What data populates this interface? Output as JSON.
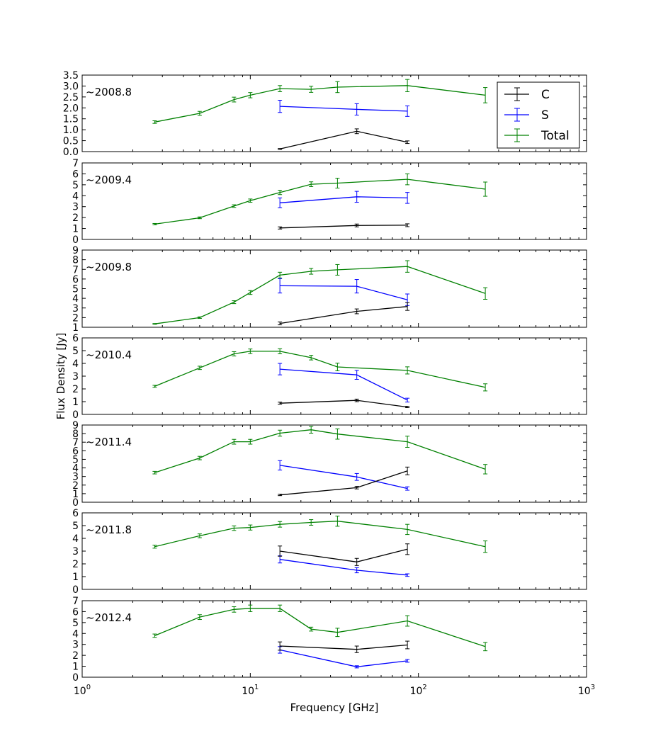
{
  "chart_data": {
    "type": "line",
    "xscale": "log",
    "xlim": [
      1,
      1000
    ],
    "xticks": [
      {
        "base": "10",
        "exp": "0"
      },
      {
        "base": "10",
        "exp": "1"
      },
      {
        "base": "10",
        "exp": "2"
      },
      {
        "base": "10",
        "exp": "3"
      }
    ],
    "xlabel": "Frequency [GHz]",
    "ylabel": "Flux Density [Jy]",
    "legend": {
      "placement": "top-right of first panel",
      "entries": [
        {
          "label": "C",
          "color": "#000000"
        },
        {
          "label": "S",
          "color": "#0000ff"
        },
        {
          "label": "Total",
          "color": "#008000"
        }
      ]
    },
    "series_colors": {
      "C": "#000000",
      "S": "#0000ff",
      "Total": "#008000"
    },
    "panels": [
      {
        "label": "~2008.8",
        "ylim": [
          0,
          3.5
        ],
        "yticks": [
          "0.0",
          "0.5",
          "1.0",
          "1.5",
          "2.0",
          "2.5",
          "3.0",
          "3.5"
        ],
        "series": [
          {
            "name": "Total",
            "points": [
              [
                2.7,
                1.35,
                0.06
              ],
              [
                5,
                1.75,
                0.09
              ],
              [
                8,
                2.38,
                0.11
              ],
              [
                10,
                2.58,
                0.12
              ],
              [
                15,
                2.88,
                0.14
              ],
              [
                23,
                2.85,
                0.14
              ],
              [
                33,
                2.95,
                0.25
              ],
              [
                86,
                3.02,
                0.28
              ],
              [
                250,
                2.58,
                0.35
              ]
            ]
          },
          {
            "name": "S",
            "points": [
              [
                15,
                2.07,
                0.28
              ],
              [
                43,
                1.93,
                0.26
              ],
              [
                86,
                1.85,
                0.24
              ]
            ]
          },
          {
            "name": "C",
            "points": [
              [
                15,
                0.12,
                0.02
              ],
              [
                43,
                0.93,
                0.11
              ],
              [
                86,
                0.43,
                0.06
              ]
            ]
          }
        ]
      },
      {
        "label": "~2009.4",
        "ylim": [
          0,
          7
        ],
        "yticks": [
          "0",
          "1",
          "2",
          "3",
          "4",
          "5",
          "6",
          "7"
        ],
        "series": [
          {
            "name": "Total",
            "points": [
              [
                2.7,
                1.4,
                0.06
              ],
              [
                5,
                1.98,
                0.08
              ],
              [
                8,
                3.05,
                0.12
              ],
              [
                10,
                3.55,
                0.15
              ],
              [
                15,
                4.3,
                0.2
              ],
              [
                23,
                5.05,
                0.22
              ],
              [
                33,
                5.15,
                0.45
              ],
              [
                86,
                5.5,
                0.5
              ],
              [
                250,
                4.6,
                0.65
              ]
            ]
          },
          {
            "name": "S",
            "points": [
              [
                15,
                3.35,
                0.45
              ],
              [
                43,
                3.9,
                0.5
              ],
              [
                86,
                3.8,
                0.5
              ]
            ]
          },
          {
            "name": "C",
            "points": [
              [
                15,
                1.05,
                0.1
              ],
              [
                43,
                1.28,
                0.13
              ],
              [
                86,
                1.3,
                0.13
              ]
            ]
          }
        ]
      },
      {
        "label": "~2009.8",
        "ylim": [
          1,
          9
        ],
        "yticks": [
          "1",
          "2",
          "3",
          "4",
          "5",
          "6",
          "7",
          "8",
          "9"
        ],
        "series": [
          {
            "name": "Total",
            "points": [
              [
                2.7,
                1.35,
                0.04
              ],
              [
                5,
                2.0,
                0.08
              ],
              [
                8,
                3.6,
                0.15
              ],
              [
                10,
                4.6,
                0.2
              ],
              [
                15,
                6.4,
                0.3
              ],
              [
                23,
                6.8,
                0.3
              ],
              [
                33,
                6.95,
                0.55
              ],
              [
                86,
                7.3,
                0.6
              ],
              [
                250,
                4.5,
                0.6
              ]
            ]
          },
          {
            "name": "S",
            "points": [
              [
                15,
                5.3,
                0.75
              ],
              [
                43,
                5.25,
                0.7
              ],
              [
                86,
                3.85,
                0.6
              ]
            ]
          },
          {
            "name": "C",
            "points": [
              [
                15,
                1.4,
                0.15
              ],
              [
                43,
                2.65,
                0.25
              ],
              [
                86,
                3.15,
                0.4
              ]
            ]
          }
        ]
      },
      {
        "label": "~2010.4",
        "ylim": [
          0,
          6
        ],
        "yticks": [
          "0",
          "1",
          "2",
          "3",
          "4",
          "5",
          "6"
        ],
        "series": [
          {
            "name": "Total",
            "points": [
              [
                2.7,
                2.2,
                0.08
              ],
              [
                5,
                3.65,
                0.13
              ],
              [
                8,
                4.75,
                0.17
              ],
              [
                10,
                4.95,
                0.18
              ],
              [
                15,
                4.95,
                0.2
              ],
              [
                23,
                4.45,
                0.18
              ],
              [
                33,
                3.72,
                0.3
              ],
              [
                86,
                3.45,
                0.28
              ],
              [
                250,
                2.12,
                0.28
              ]
            ]
          },
          {
            "name": "S",
            "points": [
              [
                15,
                3.55,
                0.45
              ],
              [
                43,
                3.1,
                0.35
              ],
              [
                86,
                1.12,
                0.15
              ]
            ]
          },
          {
            "name": "C",
            "points": [
              [
                15,
                0.88,
                0.08
              ],
              [
                43,
                1.1,
                0.1
              ],
              [
                86,
                0.58,
                0.05
              ]
            ]
          }
        ]
      },
      {
        "label": "~2011.4",
        "ylim": [
          0,
          9
        ],
        "yticks": [
          "0",
          "1",
          "2",
          "3",
          "4",
          "5",
          "6",
          "7",
          "8",
          "9"
        ],
        "series": [
          {
            "name": "Total",
            "points": [
              [
                2.7,
                3.45,
                0.15
              ],
              [
                5,
                5.15,
                0.2
              ],
              [
                8,
                7.05,
                0.28
              ],
              [
                10,
                7.05,
                0.28
              ],
              [
                15,
                8.05,
                0.35
              ],
              [
                23,
                8.45,
                0.4
              ],
              [
                33,
                7.95,
                0.6
              ],
              [
                86,
                7.05,
                0.65
              ],
              [
                250,
                3.85,
                0.55
              ]
            ]
          },
          {
            "name": "S",
            "points": [
              [
                15,
                4.3,
                0.55
              ],
              [
                43,
                2.95,
                0.4
              ],
              [
                86,
                1.6,
                0.2
              ]
            ]
          },
          {
            "name": "C",
            "points": [
              [
                15,
                0.85,
                0.08
              ],
              [
                43,
                1.7,
                0.15
              ],
              [
                86,
                3.65,
                0.45
              ]
            ]
          }
        ]
      },
      {
        "label": "~2011.8",
        "ylim": [
          0,
          6
        ],
        "yticks": [
          "0",
          "1",
          "2",
          "3",
          "4",
          "5",
          "6"
        ],
        "series": [
          {
            "name": "Total",
            "points": [
              [
                2.7,
                3.35,
                0.12
              ],
              [
                5,
                4.2,
                0.15
              ],
              [
                8,
                4.8,
                0.18
              ],
              [
                10,
                4.85,
                0.2
              ],
              [
                15,
                5.1,
                0.22
              ],
              [
                23,
                5.25,
                0.22
              ],
              [
                33,
                5.35,
                0.4
              ],
              [
                86,
                4.7,
                0.4
              ],
              [
                250,
                3.35,
                0.45
              ]
            ]
          },
          {
            "name": "S",
            "points": [
              [
                15,
                2.35,
                0.28
              ],
              [
                43,
                1.5,
                0.2
              ],
              [
                86,
                1.12,
                0.1
              ]
            ]
          },
          {
            "name": "C",
            "points": [
              [
                15,
                3.0,
                0.4
              ],
              [
                43,
                2.15,
                0.28
              ],
              [
                86,
                3.15,
                0.42
              ]
            ]
          }
        ]
      },
      {
        "label": "~2012.4",
        "ylim": [
          0,
          7
        ],
        "yticks": [
          "0",
          "1",
          "2",
          "3",
          "4",
          "5",
          "6",
          "7"
        ],
        "series": [
          {
            "name": "Total",
            "points": [
              [
                2.7,
                3.8,
                0.15
              ],
              [
                5,
                5.5,
                0.22
              ],
              [
                8,
                6.2,
                0.25
              ],
              [
                10,
                6.3,
                0.3
              ],
              [
                15,
                6.3,
                0.3
              ],
              [
                23,
                4.4,
                0.18
              ],
              [
                33,
                4.1,
                0.38
              ],
              [
                86,
                5.15,
                0.48
              ],
              [
                250,
                2.8,
                0.38
              ]
            ]
          },
          {
            "name": "S",
            "points": [
              [
                15,
                2.5,
                0.3
              ],
              [
                43,
                0.95,
                0.1
              ],
              [
                86,
                1.5,
                0.13
              ]
            ]
          },
          {
            "name": "C",
            "points": [
              [
                15,
                2.85,
                0.38
              ],
              [
                43,
                2.55,
                0.3
              ],
              [
                86,
                2.95,
                0.35
              ]
            ]
          }
        ]
      }
    ]
  }
}
